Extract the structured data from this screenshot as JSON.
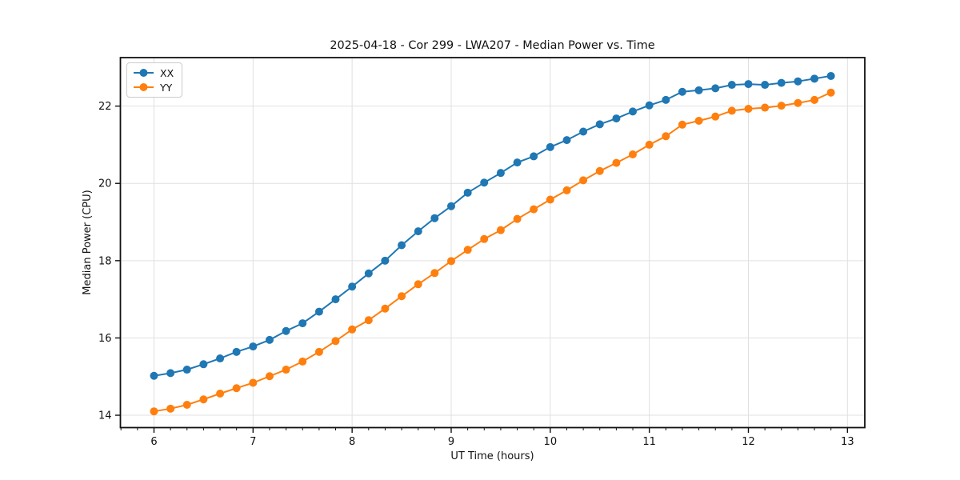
{
  "chart_data": {
    "type": "line",
    "title": "2025-04-18 - Cor 299 - LWA207 - Median Power vs. Time",
    "xlabel": "UT Time (hours)",
    "ylabel": "Median Power (CPU)",
    "xlim": [
      5.661,
      13.175
    ],
    "ylim": [
      13.68,
      23.255
    ],
    "xticks": [
      6,
      7,
      8,
      9,
      10,
      11,
      12,
      13
    ],
    "yticks": [
      14,
      16,
      18,
      20,
      22
    ],
    "x_minor_tick_step": 0.166667,
    "grid": true,
    "grid_color": "#e0e0e0",
    "axis_color": "#111111",
    "legend_position": "upper-left",
    "x": [
      6.0,
      6.167,
      6.333,
      6.5,
      6.667,
      6.833,
      7.0,
      7.167,
      7.333,
      7.5,
      7.667,
      7.833,
      8.0,
      8.167,
      8.333,
      8.5,
      8.667,
      8.833,
      9.0,
      9.167,
      9.333,
      9.5,
      9.667,
      9.833,
      10.0,
      10.167,
      10.333,
      10.5,
      10.667,
      10.833,
      11.0,
      11.167,
      11.333,
      11.5,
      11.667,
      11.833,
      12.0,
      12.167,
      12.333,
      12.5,
      12.667,
      12.833
    ],
    "series": [
      {
        "name": "XX",
        "color": "#1f77b4",
        "values": [
          15.02,
          15.09,
          15.18,
          15.32,
          15.47,
          15.64,
          15.78,
          15.95,
          16.18,
          16.38,
          16.68,
          17.0,
          17.33,
          17.67,
          18.0,
          18.4,
          18.76,
          19.1,
          19.41,
          19.76,
          20.02,
          20.27,
          20.54,
          20.7,
          20.94,
          21.12,
          21.34,
          21.53,
          21.68,
          21.86,
          22.02,
          22.16,
          22.37,
          22.41,
          22.46,
          22.55,
          22.57,
          22.55,
          22.6,
          22.64,
          22.71,
          22.78
        ]
      },
      {
        "name": "YY",
        "color": "#ff7f0e",
        "values": [
          14.1,
          14.17,
          14.27,
          14.41,
          14.56,
          14.7,
          14.84,
          15.01,
          15.18,
          15.39,
          15.64,
          15.92,
          16.22,
          16.46,
          16.76,
          17.08,
          17.39,
          17.68,
          17.99,
          18.28,
          18.56,
          18.79,
          19.08,
          19.33,
          19.58,
          19.82,
          20.08,
          20.32,
          20.53,
          20.75,
          21.0,
          21.22,
          21.52,
          21.62,
          21.73,
          21.88,
          21.93,
          21.96,
          22.01,
          22.08,
          22.16,
          22.35
        ]
      }
    ]
  }
}
